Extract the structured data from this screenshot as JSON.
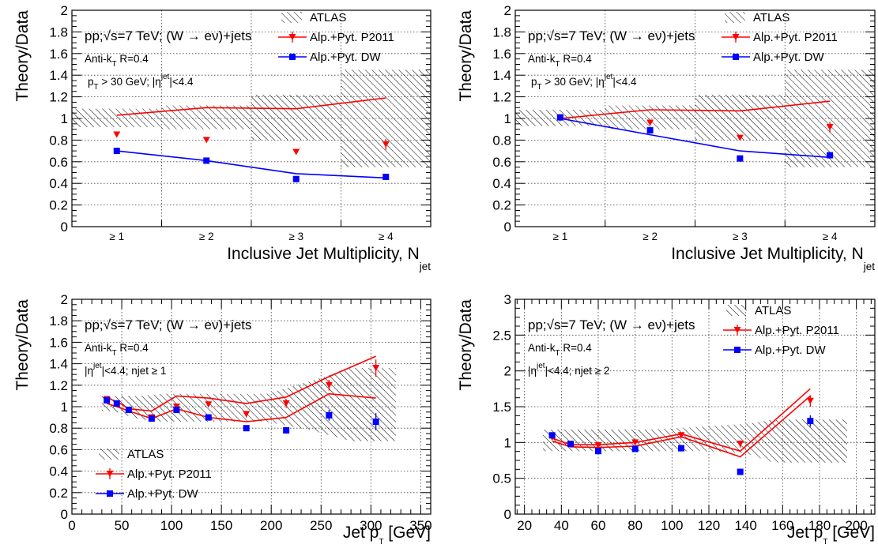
{
  "chart_data": [
    {
      "type": "line",
      "panel": "top-left",
      "xlabel": "Inclusive Jet Multiplicity, N",
      "xlabel_sub": "jet",
      "ylabel": "Theory/Data",
      "ylim": [
        0,
        2
      ],
      "yticks": [
        0,
        0.2,
        0.4,
        0.6,
        0.8,
        1,
        1.2,
        1.4,
        1.6,
        1.8,
        2
      ],
      "ytick_labels": [
        "0",
        "0.2",
        "0.4",
        "0.6",
        "0.8",
        "1",
        "1.2",
        "1.4",
        "1.6",
        "1.8",
        "2"
      ],
      "categories": [
        "≥ 1",
        "≥ 2",
        "≥ 3",
        "≥ 4"
      ],
      "annotations": [
        {
          "text": "pp;√s=7 TeV; (W → eν)+jets"
        },
        {
          "text": "Anti-k",
          "sub": "T",
          "after": " R=0.4"
        },
        {
          "text": "p",
          "sub": "T",
          "after": " > 30 GeV; |η",
          "sup": "jet",
          "after2": "|<4.4"
        }
      ],
      "legend": {
        "position": "top-right",
        "entries": [
          "ATLAS",
          "Alp.+Pyt. P2011",
          "Alp.+Pyt. DW"
        ]
      },
      "band": [
        [
          0.92,
          1.09
        ],
        [
          0.9,
          1.12
        ],
        [
          0.8,
          1.22
        ],
        [
          0.55,
          1.45
        ]
      ],
      "series": [
        {
          "name": "Alp.+Pyt. P2011",
          "line": [
            1.03,
            1.1,
            1.09,
            1.19
          ],
          "points": [
            0.85,
            0.8,
            0.69,
            0.76
          ],
          "err": [
            0,
            0,
            0,
            0.05
          ]
        },
        {
          "name": "Alp.+Pyt. DW",
          "line": [
            0.7,
            0.61,
            0.49,
            0.45
          ],
          "points": [
            0.7,
            0.61,
            0.44,
            0.46
          ],
          "err": [
            0,
            0,
            0,
            0
          ]
        }
      ]
    },
    {
      "type": "line",
      "panel": "top-right",
      "xlabel": "Inclusive Jet Multiplicity, N",
      "xlabel_sub": "jet",
      "ylabel": "Theory/Data",
      "ylim": [
        0,
        2
      ],
      "yticks": [
        0,
        0.2,
        0.4,
        0.6,
        0.8,
        1,
        1.2,
        1.4,
        1.6,
        1.8,
        2
      ],
      "ytick_labels": [
        "0",
        "0.2",
        "0.4",
        "0.6",
        "0.8",
        "1",
        "1.2",
        "1.4",
        "1.6",
        "1.8",
        "2"
      ],
      "categories": [
        "≥ 1",
        "≥ 2",
        "≥ 3",
        "≥ 4"
      ],
      "annotations": [
        {
          "text": "pp;√s=7 TeV; (W → eν)+jets"
        },
        {
          "text": "Anti-k",
          "sub": "T",
          "after": " R=0.4"
        },
        {
          "text": "p",
          "sub": "T",
          "after": " > 30 GeV; |η",
          "sup": "jet",
          "after2": "|<4.4"
        }
      ],
      "legend": {
        "position": "top-right",
        "entries": [
          "ATLAS",
          "Alp.+Pyt. P2011",
          "Alp.+Pyt. DW"
        ]
      },
      "band": [
        [
          0.93,
          1.08
        ],
        [
          0.9,
          1.12
        ],
        [
          0.8,
          1.22
        ],
        [
          0.55,
          1.45
        ]
      ],
      "series": [
        {
          "name": "Alp.+Pyt. P2011",
          "line": [
            1.0,
            1.08,
            1.07,
            1.16
          ],
          "points": [
            1.0,
            0.96,
            0.82,
            0.92
          ],
          "err": [
            0,
            0.02,
            0.02,
            0.05
          ]
        },
        {
          "name": "Alp.+Pyt. DW",
          "line": [
            1.0,
            0.85,
            0.7,
            0.64
          ],
          "points": [
            1.01,
            0.89,
            0.63,
            0.66
          ],
          "err": [
            0,
            0,
            0,
            0.03
          ]
        }
      ]
    },
    {
      "type": "line",
      "panel": "bottom-left",
      "xlabel": "Jet p",
      "xlabel_sub": "T",
      "xlabel_after": " [GeV]",
      "ylabel": "Theory/Data",
      "xlim": [
        0,
        360
      ],
      "xticks": [
        0,
        50,
        100,
        150,
        200,
        250,
        300,
        350
      ],
      "xtick_labels": [
        "0",
        "50",
        "100",
        "150",
        "200",
        "250",
        "300",
        "350"
      ],
      "ylim": [
        0,
        2
      ],
      "yticks": [
        0,
        0.2,
        0.4,
        0.6,
        0.8,
        1,
        1.2,
        1.4,
        1.6,
        1.8,
        2
      ],
      "ytick_labels": [
        "0",
        "0.2",
        "0.4",
        "0.6",
        "0.8",
        "1",
        "1.2",
        "1.4",
        "1.6",
        "1.8",
        "2"
      ],
      "annotations": [
        {
          "text": "pp;√s=7 TeV; (W → eν)+jets"
        },
        {
          "text": "Anti-k",
          "sub": "T",
          "after": " R=0.4"
        },
        {
          "text": "|η",
          "sup": "jet",
          "after": "|<4.4; njet ≥ 1"
        }
      ],
      "legend": {
        "position": "bottom-left",
        "entries": [
          "ATLAS",
          "Alp.+Pyt. P2011",
          "Alp.+Pyt. DW"
        ]
      },
      "band": {
        "x": [
          30,
          40,
          50,
          60,
          70,
          90,
          120,
          155,
          195,
          240,
          280,
          325
        ],
        "lo": [
          0.96,
          0.96,
          0.94,
          0.9,
          0.88,
          0.86,
          0.86,
          0.86,
          0.86,
          0.78,
          0.68,
          0.68
        ],
        "hi": [
          1.1,
          1.1,
          1.1,
          1.1,
          1.1,
          1.12,
          1.12,
          1.12,
          1.12,
          1.24,
          1.36,
          1.36
        ]
      },
      "series": [
        {
          "name": "Alp.+Pyt. P2011",
          "line_upper": {
            "x": [
              35,
              45,
              57,
              80,
              105,
              137,
              175,
              215,
              258,
              305
            ],
            "y": [
              1.08,
              1.05,
              0.98,
              0.96,
              1.1,
              1.08,
              1.03,
              1.09,
              1.28,
              1.47
            ]
          },
          "line_lower": {
            "x": [
              35,
              45,
              57,
              80,
              105,
              137,
              175,
              215,
              258,
              305
            ],
            "y": [
              1.03,
              1.0,
              0.96,
              0.89,
              0.98,
              0.9,
              0.86,
              0.9,
              1.12,
              1.08
            ]
          },
          "x": [
            35,
            45,
            57,
            80,
            105,
            137,
            175,
            215,
            258,
            305
          ],
          "y": [
            1.07,
            1.03,
            0.97,
            0.9,
            1.0,
            1.02,
            0.93,
            1.03,
            1.2,
            1.36
          ],
          "err": [
            0.01,
            0.01,
            0.01,
            0.01,
            0.02,
            0.02,
            0.03,
            0.04,
            0.05,
            0.08
          ]
        },
        {
          "name": "Alp.+Pyt. DW",
          "x": [
            35,
            45,
            57,
            80,
            105,
            137,
            175,
            215,
            258,
            305
          ],
          "y": [
            1.06,
            1.03,
            0.97,
            0.89,
            0.97,
            0.9,
            0.8,
            0.78,
            0.92,
            0.86
          ],
          "err": [
            0.01,
            0.01,
            0.01,
            0.01,
            0.02,
            0.02,
            0.02,
            0.03,
            0.05,
            0.08
          ]
        }
      ]
    },
    {
      "type": "line",
      "panel": "bottom-right",
      "xlabel": "Jet p",
      "xlabel_sub": "T",
      "xlabel_after": " [GeV]",
      "ylabel": "Theory/Data",
      "xlim": [
        15,
        210
      ],
      "xticks": [
        20,
        40,
        60,
        80,
        100,
        120,
        140,
        160,
        180,
        200
      ],
      "xtick_labels": [
        "20",
        "40",
        "60",
        "80",
        "100",
        "120",
        "140",
        "160",
        "180",
        "200"
      ],
      "ylim": [
        0,
        3
      ],
      "yticks": [
        0,
        0.5,
        1,
        1.5,
        2,
        2.5,
        3
      ],
      "ytick_labels": [
        "0",
        "0.5",
        "1",
        "1.5",
        "2",
        "2.5",
        "3"
      ],
      "annotations": [
        {
          "text": "pp;√s=7 TeV; (W → eν)+jets"
        },
        {
          "text": "Anti-k",
          "sub": "T",
          "after": " R=0.4"
        },
        {
          "text": "|η",
          "sup": "jet",
          "after": "|<4.4; njet ≥ 2"
        }
      ],
      "legend": {
        "position": "top-right",
        "entries": [
          "ATLAS",
          "Alp.+Pyt. P2011",
          "Alp.+Pyt. DW"
        ]
      },
      "band": {
        "x": [
          30,
          40,
          50,
          70,
          90,
          115,
          140,
          155,
          195
        ],
        "lo": [
          0.88,
          0.88,
          0.88,
          0.88,
          0.88,
          0.88,
          0.85,
          0.72,
          0.72
        ],
        "hi": [
          1.18,
          1.18,
          1.18,
          1.18,
          1.18,
          1.22,
          1.26,
          1.32,
          1.32
        ]
      },
      "series": [
        {
          "name": "Alp.+Pyt. P2011",
          "line_upper": {
            "x": [
              35,
              45,
              60,
              80,
              105,
              137,
              175
            ],
            "y": [
              1.06,
              0.97,
              0.97,
              1.0,
              1.12,
              0.88,
              1.75
            ]
          },
          "line_lower": {
            "x": [
              35,
              45,
              60,
              80,
              105,
              137,
              175
            ],
            "y": [
              1.02,
              0.94,
              0.93,
              0.95,
              1.08,
              0.8,
              1.65
            ]
          },
          "x": [
            35,
            45,
            60,
            80,
            105,
            137,
            175
          ],
          "y": [
            1.07,
            0.97,
            0.96,
            1.0,
            1.1,
            0.98,
            1.58
          ],
          "err": [
            0.03,
            0.02,
            0.02,
            0.03,
            0.03,
            0.05,
            0.08
          ]
        },
        {
          "name": "Alp.+Pyt. DW",
          "x": [
            35,
            45,
            60,
            80,
            105,
            137,
            175
          ],
          "y": [
            1.1,
            0.98,
            0.88,
            0.91,
            0.92,
            0.59,
            1.3
          ],
          "err": [
            0.03,
            0.02,
            0.02,
            0.02,
            0.03,
            0.03,
            0.08
          ]
        }
      ]
    }
  ],
  "colors": {
    "theory_p2011": "#ff0000",
    "theory_dw": "#0000ff",
    "band": "#000000"
  },
  "marker_names": [
    "triangle-down-marker",
    "square-marker"
  ]
}
